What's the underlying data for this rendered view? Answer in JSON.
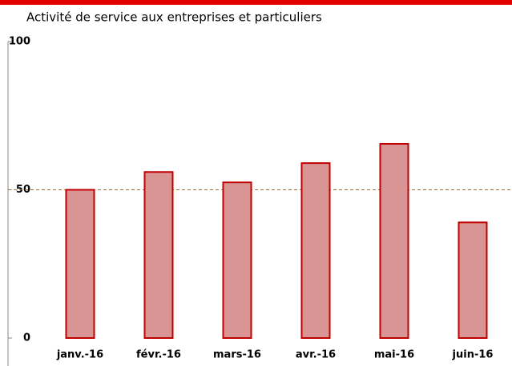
{
  "chart_data": {
    "type": "bar",
    "title": "Activité de service aux entreprises et particuliers",
    "categories": [
      "janv.-16",
      "févr.-16",
      "mars-16",
      "avr.-16",
      "mai-16",
      "juin-16"
    ],
    "values": [
      50,
      56,
      52.5,
      59,
      65.5,
      39
    ],
    "color": "#d99594",
    "edge_color": "#c00000",
    "ylim": [
      0,
      100
    ],
    "yticks": [
      0,
      50,
      100
    ],
    "reference_line": 50,
    "reference_line_color": "#a0703a"
  }
}
